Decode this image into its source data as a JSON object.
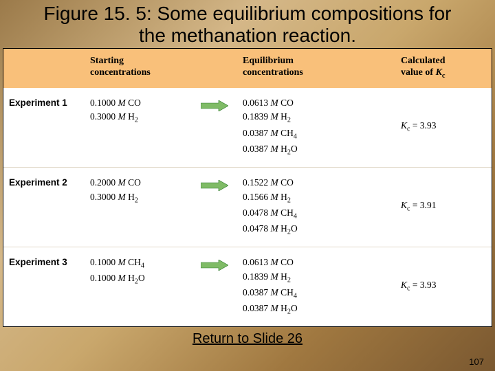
{
  "title": "Figure 15. 5: Some equilibrium compositions for the methanation reaction.",
  "table": {
    "headers": {
      "exp": "",
      "start": "Starting\nconcentrations",
      "eq": "Equilibrium\nconcentrations",
      "kc": "Calculated value of Kc"
    },
    "rows": [
      {
        "label": "Experiment 1",
        "start": [
          "0.1000 M CO",
          "0.3000 M H2"
        ],
        "eq": [
          "0.0613 M CO",
          "0.1839 M H2",
          "0.0387 M CH4",
          "0.0387 M H2O"
        ],
        "kc": "Kc = 3.93"
      },
      {
        "label": "Experiment 2",
        "start": [
          "0.2000 M CO",
          "0.3000 M H2"
        ],
        "eq": [
          "0.1522 M CO",
          "0.1566 M H2",
          "0.0478 M CH4",
          "0.0478 M H2O"
        ],
        "kc": "Kc = 3.91"
      },
      {
        "label": "Experiment 3",
        "start": [
          "0.1000 M CH4",
          "0.1000 M H2O"
        ],
        "eq": [
          "0.0613 M CO",
          "0.1839 M H2",
          "0.0387 M CH4",
          "0.0387 M H2O"
        ],
        "kc": "Kc = 3.93"
      }
    ],
    "arrow_fill": "#7fbb66",
    "arrow_stroke": "#2a7a2a",
    "header_bg": "#f9c07a",
    "row_border": "#e0d8c8",
    "cell_fontsize": 13.5,
    "header_fontsize": 14
  },
  "return_link": "Return to Slide 26",
  "slide_number": "107"
}
